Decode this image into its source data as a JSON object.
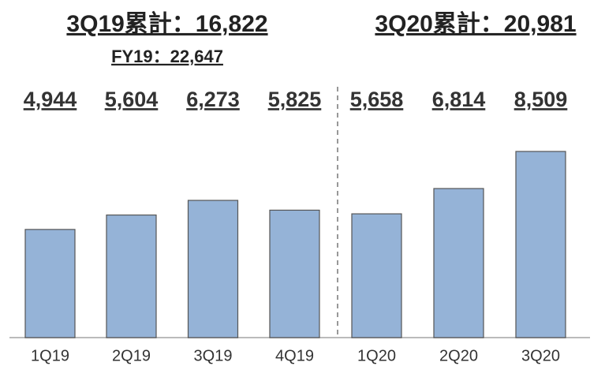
{
  "chart_data": {
    "type": "bar",
    "annotations": [
      "3Q19累計：16,822",
      "FY19：22,647",
      "3Q20累計：20,981"
    ],
    "categories": [
      "1Q19",
      "2Q19",
      "3Q19",
      "4Q19",
      "1Q20",
      "2Q20",
      "3Q20"
    ],
    "values": [
      4944,
      5604,
      6273,
      5825,
      5658,
      6814,
      8509
    ],
    "value_labels": [
      "4,944",
      "5,604",
      "6,273",
      "5,825",
      "5,658",
      "6,814",
      "8,509"
    ],
    "color": "#95b3d7"
  }
}
